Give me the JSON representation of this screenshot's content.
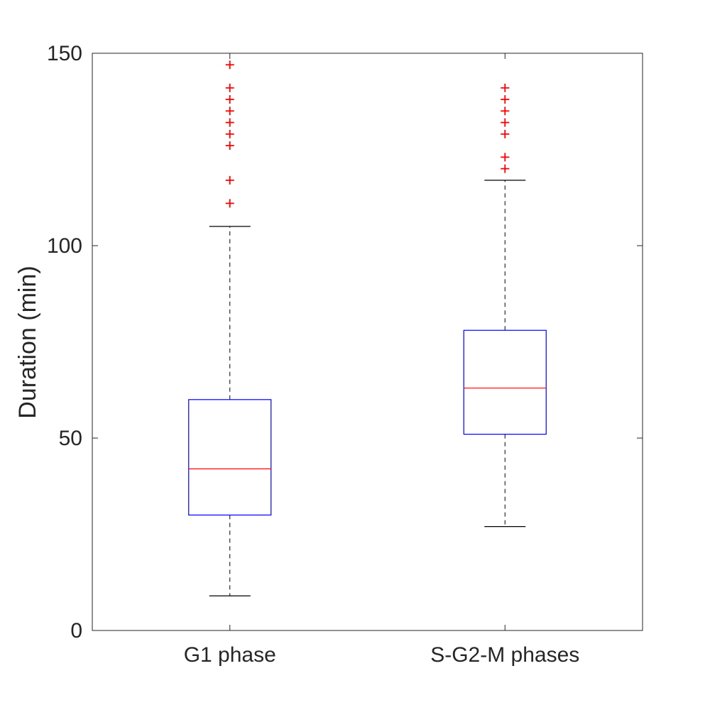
{
  "chart_data": {
    "type": "box",
    "title": "",
    "xlabel": "",
    "ylabel": "Duration (min)",
    "ylim": [
      0,
      150
    ],
    "yticks": [
      0,
      50,
      100,
      150
    ],
    "grid": false,
    "colors": {
      "box": "#0000ff",
      "median": "#ff0000",
      "whisker": "#000000",
      "outlier": "#ff0000",
      "axis": "#262626"
    },
    "categories": [
      "G1 phase",
      "S-G2-M phases"
    ],
    "boxes": [
      {
        "label": "G1 phase",
        "whisker_low": 9,
        "q1": 30,
        "median": 42,
        "q3": 60,
        "whisker_high": 105,
        "outliers": [
          111,
          117,
          126,
          129,
          132,
          135,
          138,
          141,
          147
        ]
      },
      {
        "label": "S-G2-M phases",
        "whisker_low": 27,
        "q1": 51,
        "median": 63,
        "q3": 78,
        "whisker_high": 117,
        "outliers": [
          120,
          123,
          129,
          132,
          135,
          138,
          141
        ]
      }
    ]
  }
}
